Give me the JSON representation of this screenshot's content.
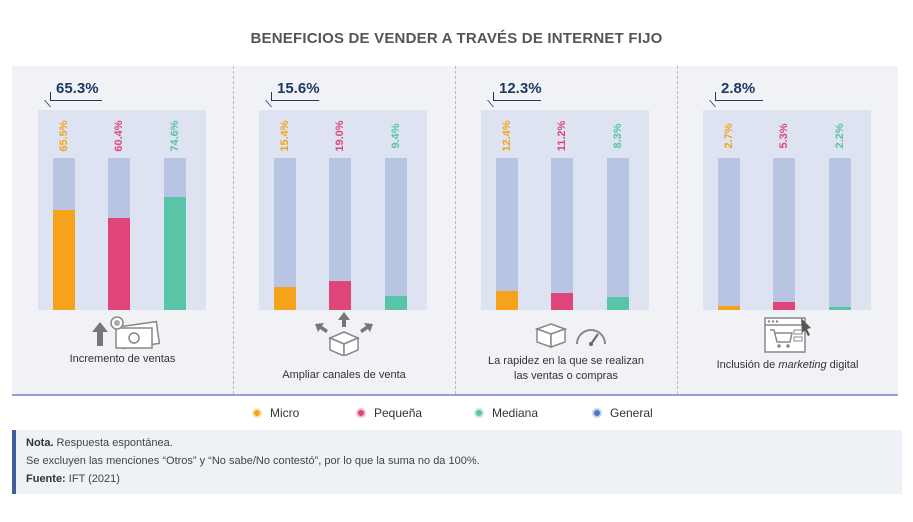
{
  "title": "BENEFICIOS DE VENDER A TRAVÉS DE INTERNET FIJO",
  "colors": {
    "micro": "#f6a21b",
    "pequena": "#e0457a",
    "mediana": "#58c4a8",
    "general": "#4a78c4",
    "track": "#b7c4e2"
  },
  "chart_data": {
    "type": "bar",
    "title": "BENEFICIOS DE VENDER A TRAVÉS DE INTERNET FIJO",
    "ylim": [
      0,
      100
    ],
    "series_names": [
      "Micro",
      "Pequeña",
      "Mediana"
    ],
    "groups": [
      {
        "category": "Incremento de ventas",
        "general": "65.3%",
        "values": [
          65.5,
          60.4,
          74.6
        ],
        "labels": [
          "65.5%",
          "60.4%",
          "74.6%"
        ]
      },
      {
        "category": "Ampliar canales de venta",
        "general": "15.6%",
        "values": [
          15.4,
          19.0,
          9.4
        ],
        "labels": [
          "15.4%",
          "19.0%",
          "9.4%"
        ]
      },
      {
        "category": "La rapidez en la que se realizan las ventas o compras",
        "general": "12.3%",
        "values": [
          12.4,
          11.2,
          8.3
        ],
        "labels": [
          "12.4%",
          "11.2%",
          "8.3%"
        ]
      },
      {
        "category": "Inclusión de marketing digital",
        "general": "2.8%",
        "values": [
          2.7,
          5.3,
          2.2
        ],
        "labels": [
          "2.7%",
          "5.3%",
          "2.2%"
        ]
      }
    ]
  },
  "panels": [
    {
      "general": "65.3%",
      "label_lines": [
        "Incremento de ventas"
      ],
      "icon": "money-growth-icon"
    },
    {
      "general": "15.6%",
      "label_lines": [
        "Ampliar canales de venta"
      ],
      "icon": "box-arrows-icon"
    },
    {
      "general": "12.3%",
      "label_lines": [
        "La rapidez en la que se realizan",
        "las ventas o compras"
      ],
      "icon": "box-speedometer-icon"
    },
    {
      "general": "2.8%",
      "label_pre": "Inclusión de ",
      "label_em": "marketing",
      "label_post": " digital",
      "icon": "web-cart-icon"
    }
  ],
  "legend": {
    "micro": "Micro",
    "pequena": "Pequeña",
    "mediana": "Mediana",
    "general": "General"
  },
  "note": {
    "nota_label": "Nota.",
    "nota_text": " Respuesta espontánea.",
    "line2": "Se excluyen las menciones “Otros” y “No sabe/No contestó”, por lo que la suma no da 100%.",
    "fuente_label": "Fuente:",
    "fuente_text": " IFT (2021)"
  }
}
